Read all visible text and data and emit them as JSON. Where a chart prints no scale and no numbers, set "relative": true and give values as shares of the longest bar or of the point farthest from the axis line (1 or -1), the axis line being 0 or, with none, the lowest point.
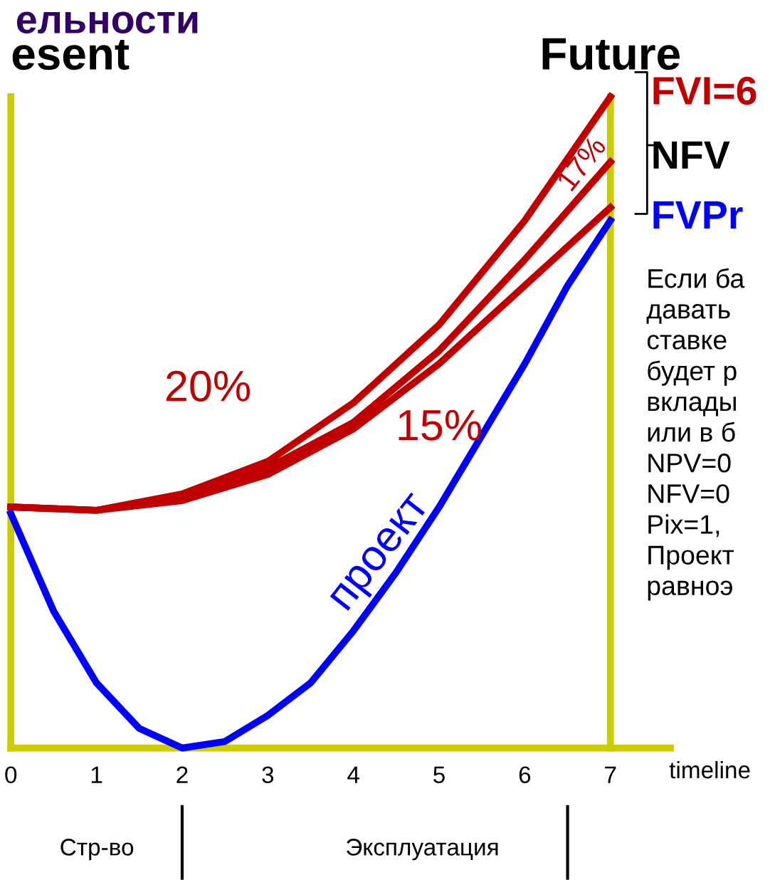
{
  "chart_data": {
    "type": "line",
    "relative": true,
    "title": "ельности",
    "xlabel": "timeline",
    "x": [
      0,
      0.5,
      1,
      1.5,
      2,
      2.5,
      3,
      3.5,
      4,
      4.5,
      5,
      5.5,
      6,
      6.5,
      7
    ],
    "xlim": [
      0,
      7.7
    ],
    "xticks": [
      0,
      1,
      2,
      3,
      4,
      5,
      6,
      7
    ],
    "series": [
      {
        "name": "20%",
        "color": "#c00000",
        "x": [
          0,
          1,
          2,
          3,
          4,
          5,
          6,
          7
        ],
        "values": [
          0.37,
          0.365,
          0.39,
          0.44,
          0.53,
          0.65,
          0.81,
          1.0
        ]
      },
      {
        "name": "17%",
        "color": "#c00000",
        "x": [
          0,
          1,
          2,
          3,
          4,
          5,
          6,
          7
        ],
        "values": [
          0.37,
          0.365,
          0.385,
          0.43,
          0.5,
          0.61,
          0.75,
          0.9
        ]
      },
      {
        "name": "15%",
        "color": "#c00000",
        "x": [
          0,
          1,
          2,
          3,
          4,
          5,
          6,
          7
        ],
        "values": [
          0.37,
          0.365,
          0.38,
          0.42,
          0.49,
          0.59,
          0.71,
          0.83
        ]
      },
      {
        "name": "проект",
        "color": "#0000ff",
        "values": [
          0.36,
          0.21,
          0.1,
          0.03,
          0.0,
          0.01,
          0.05,
          0.1,
          0.18,
          0.27,
          0.37,
          0.48,
          0.59,
          0.71,
          0.81
        ]
      }
    ],
    "ref_lines": [
      {
        "axis": "x",
        "value": 0,
        "label": "esent",
        "color": "#cccc00"
      },
      {
        "axis": "x",
        "value": 7,
        "label": "Future",
        "color": "#cccc00"
      }
    ],
    "annotations": [
      "Стр-во",
      "Эксплуатация",
      "FVI=6",
      "NFV",
      "FVPr",
      "Если ба\nдавать\nставке\nбудет р\nвклады\nили в б\nNPV=0\nNFV=0\nPix=1,\nПроект\nравноэ"
    ],
    "grid": false,
    "legend": false,
    "marker": "none",
    "line_style": "solid"
  }
}
